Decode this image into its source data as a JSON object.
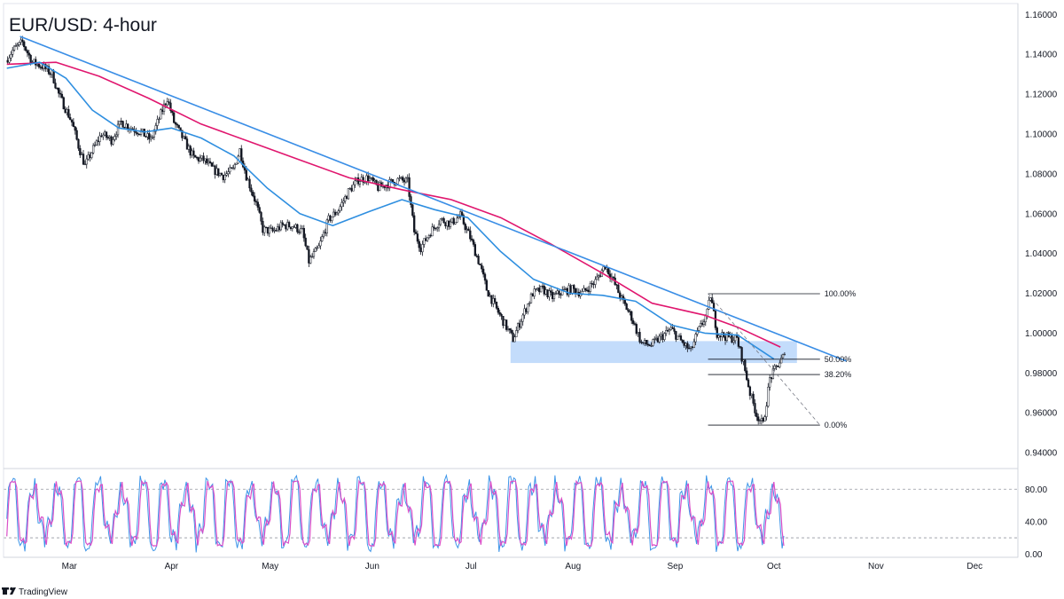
{
  "title": "EUR/USD: 4-hour",
  "brand": {
    "name": "TradingView",
    "icon": "tradingview-logo-icon"
  },
  "colors": {
    "candle": "#131722",
    "ema_fast": "#2f8fe0",
    "ema_slow": "#e0166e",
    "trendline": "#3a8ee6",
    "zone": "#bcd8fb",
    "stoch_k": "#3d95e8",
    "stoch_d": "#d94fc8",
    "grid": "#9598a1"
  },
  "chart_data": {
    "type": "line",
    "xlabels": [
      "Mar",
      "Apr",
      "May",
      "Jun",
      "Jul",
      "Aug",
      "Sep",
      "Oct",
      "Nov",
      "Dec"
    ],
    "price_axis_labels": [
      "1.16000",
      "1.14000",
      "1.12000",
      "1.10000",
      "1.08000",
      "1.06000",
      "1.04000",
      "1.02000",
      "1.00000",
      "0.98000",
      "0.96000",
      "0.94000"
    ],
    "price_ylim": [
      0.932,
      1.1655
    ],
    "price_series": {
      "name": "",
      "points": [
        [
          "Feb 10",
          1.137
        ],
        [
          "Feb 12",
          1.142
        ],
        [
          "Feb 15",
          1.146
        ],
        [
          "Feb 18",
          1.136
        ],
        [
          "Feb 21",
          1.134
        ],
        [
          "Feb 24",
          1.13
        ],
        [
          "Feb 26",
          1.12
        ],
        [
          "Feb 28",
          1.113
        ],
        [
          "Mar 2",
          1.106
        ],
        [
          "Mar 4",
          1.094
        ],
        [
          "Mar 6",
          1.084
        ],
        [
          "Mar 8",
          1.091
        ],
        [
          "Mar 11",
          1.1
        ],
        [
          "Mar 14",
          1.097
        ],
        [
          "Mar 17",
          1.106
        ],
        [
          "Mar 20",
          1.103
        ],
        [
          "Mar 23",
          1.101
        ],
        [
          "Mar 26",
          1.097
        ],
        [
          "Mar 29",
          1.11
        ],
        [
          "Mar 31",
          1.118
        ],
        [
          "Apr 2",
          1.106
        ],
        [
          "Apr 5",
          1.097
        ],
        [
          "Apr 8",
          1.088
        ],
        [
          "Apr 11",
          1.087
        ],
        [
          "Apr 14",
          1.082
        ],
        [
          "Apr 17",
          1.079
        ],
        [
          "Apr 20",
          1.082
        ],
        [
          "Apr 22",
          1.092
        ],
        [
          "Apr 24",
          1.079
        ],
        [
          "Apr 27",
          1.065
        ],
        [
          "Apr 29",
          1.052
        ],
        [
          "May 2",
          1.051
        ],
        [
          "May 5",
          1.054
        ],
        [
          "May 8",
          1.054
        ],
        [
          "May 11",
          1.051
        ],
        [
          "May 13",
          1.036
        ],
        [
          "May 16",
          1.043
        ],
        [
          "May 19",
          1.057
        ],
        [
          "May 22",
          1.062
        ],
        [
          "May 25",
          1.071
        ],
        [
          "May 28",
          1.077
        ],
        [
          "May 31",
          1.078
        ],
        [
          "Jun 3",
          1.073
        ],
        [
          "Jun 6",
          1.075
        ],
        [
          "Jun 9",
          1.077
        ],
        [
          "Jun 12",
          1.076
        ],
        [
          "Jun 14",
          1.051
        ],
        [
          "Jun 16",
          1.043
        ],
        [
          "Jun 19",
          1.051
        ],
        [
          "Jun 22",
          1.057
        ],
        [
          "Jun 25",
          1.055
        ],
        [
          "Jun 28",
          1.059
        ],
        [
          "Jul 1",
          1.048
        ],
        [
          "Jul 4",
          1.034
        ],
        [
          "Jul 6",
          1.022
        ],
        [
          "Jul 9",
          1.012
        ],
        [
          "Jul 12",
          1.003
        ],
        [
          "Jul 14",
          0.997
        ],
        [
          "Jul 17",
          1.009
        ],
        [
          "Jul 20",
          1.02
        ],
        [
          "Jul 23",
          1.022
        ],
        [
          "Jul 26",
          1.018
        ],
        [
          "Jul 29",
          1.021
        ],
        [
          "Aug 1",
          1.022
        ],
        [
          "Aug 4",
          1.02
        ],
        [
          "Aug 8",
          1.026
        ],
        [
          "Aug 11",
          1.034
        ],
        [
          "Aug 13",
          1.028
        ],
        [
          "Aug 16",
          1.017
        ],
        [
          "Aug 19",
          1.008
        ],
        [
          "Aug 22",
          0.995
        ],
        [
          "Aug 25",
          0.994
        ],
        [
          "Aug 28",
          0.998
        ],
        [
          "Aug 31",
          1.002
        ],
        [
          "Sep 3",
          0.996
        ],
        [
          "Sep 6",
          0.991
        ],
        [
          "Sep 8",
          1.0
        ],
        [
          "Sep 11",
          1.01
        ],
        [
          "Sep 12",
          1.019
        ],
        [
          "Sep 14",
          1.0
        ],
        [
          "Sep 17",
          0.998
        ],
        [
          "Sep 20",
          0.997
        ],
        [
          "Sep 22",
          0.985
        ],
        [
          "Sep 24",
          0.97
        ],
        [
          "Sep 26",
          0.959
        ],
        [
          "Sep 28",
          0.954
        ],
        [
          "Sep 30",
          0.977
        ],
        [
          "Oct 2",
          0.983
        ],
        [
          "Oct 4",
          0.988
        ]
      ]
    },
    "ema_fast": {
      "name": "",
      "points": [
        [
          "Feb 10",
          1.133
        ],
        [
          "Feb 20",
          1.136
        ],
        [
          "Feb 28",
          1.128
        ],
        [
          "Mar 8",
          1.112
        ],
        [
          "Mar 16",
          1.103
        ],
        [
          "Mar 24",
          1.101
        ],
        [
          "Apr 1",
          1.103
        ],
        [
          "Apr 10",
          1.098
        ],
        [
          "Apr 20",
          1.089
        ],
        [
          "Apr 30",
          1.073
        ],
        [
          "May 10",
          1.06
        ],
        [
          "May 20",
          1.054
        ],
        [
          "May 31",
          1.061
        ],
        [
          "Jun 10",
          1.067
        ],
        [
          "Jun 20",
          1.062
        ],
        [
          "Jun 30",
          1.058
        ],
        [
          "Jul 10",
          1.041
        ],
        [
          "Jul 20",
          1.027
        ],
        [
          "Jul 31",
          1.02
        ],
        [
          "Aug 10",
          1.019
        ],
        [
          "Aug 20",
          1.016
        ],
        [
          "Aug 31",
          1.004
        ],
        [
          "Sep 10",
          1.0
        ],
        [
          "Sep 20",
          0.999
        ],
        [
          "Oct 1",
          0.987
        ]
      ]
    },
    "ema_slow": {
      "name": "",
      "points": [
        [
          "Feb 10",
          1.135
        ],
        [
          "Feb 25",
          1.136
        ],
        [
          "Mar 10",
          1.129
        ],
        [
          "Mar 25",
          1.118
        ],
        [
          "Apr 10",
          1.105
        ],
        [
          "Apr 25",
          1.096
        ],
        [
          "May 10",
          1.087
        ],
        [
          "May 25",
          1.078
        ],
        [
          "Jun 10",
          1.072
        ],
        [
          "Jun 25",
          1.067
        ],
        [
          "Jul 10",
          1.058
        ],
        [
          "Jul 25",
          1.045
        ],
        [
          "Aug 10",
          1.03
        ],
        [
          "Aug 25",
          1.015
        ],
        [
          "Sep 10",
          1.009
        ],
        [
          "Sep 20",
          1.003
        ],
        [
          "Oct 3",
          0.993
        ]
      ]
    },
    "trendline": {
      "from": [
        "Feb 14",
        1.149
      ],
      "to": [
        "Oct 23",
        0.986
      ]
    },
    "support_zone": {
      "x_from": "Jul 13",
      "x_to": "Oct 8",
      "y_low": 0.985,
      "y_high": 0.996
    },
    "fibonacci": {
      "x_from": "Sep 11",
      "x_to": "Oct 15",
      "levels": [
        {
          "label": "100.00%",
          "value": 1.0198
        },
        {
          "label": "50.00%",
          "value": 0.9869
        },
        {
          "label": "38.20%",
          "value": 0.9792
        },
        {
          "label": "0.00%",
          "value": 0.9538
        }
      ]
    },
    "stochastic": {
      "axis_labels": [
        "80.00",
        "40.00",
        "0.00"
      ],
      "ylim": [
        -4,
        100
      ],
      "levels": [
        80,
        20
      ],
      "last_date": "Oct 4",
      "cycle_days": 6.6
    },
    "grid": false,
    "legend": "none"
  }
}
